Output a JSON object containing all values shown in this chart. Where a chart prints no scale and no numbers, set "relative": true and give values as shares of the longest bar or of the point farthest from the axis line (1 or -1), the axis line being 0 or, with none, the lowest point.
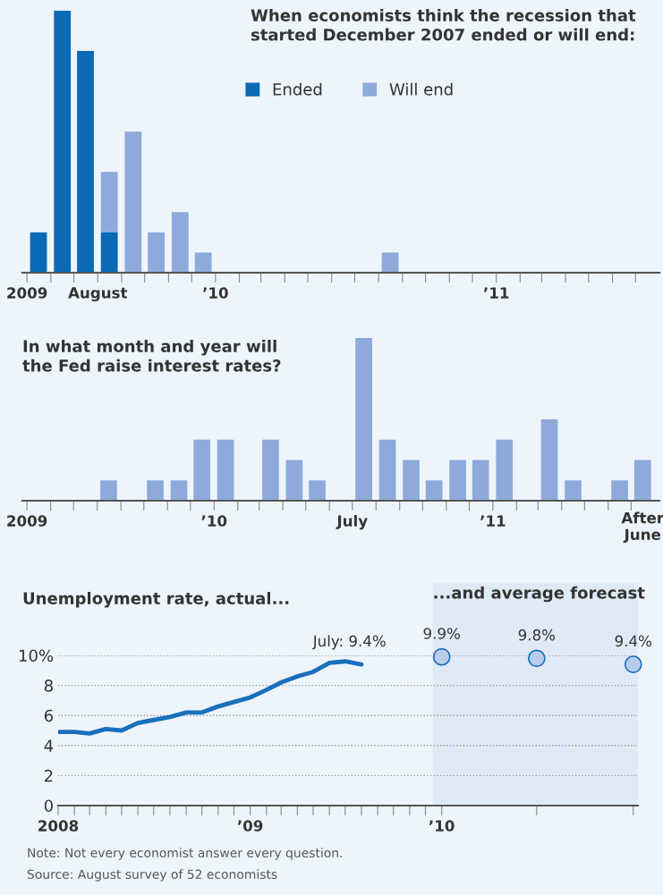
{
  "chart_data": [
    {
      "type": "bar",
      "title": "When economists think the recession that\nstarted December 2007 ended or will end:",
      "stacked": true,
      "relative": true,
      "legend": "top right",
      "x": [
        "2009-05-16",
        "2009-06-16",
        "2009-07-16",
        "2009-08-16",
        "2009-09-16",
        "2009-10-16",
        "2009-11-16",
        "2009-12-16",
        "2010-08-16"
      ],
      "series": [
        {
          "name": "Ended",
          "color": "#0a6ab5",
          "values": [
            0.154,
            1,
            0.846,
            0.154,
            null,
            null,
            null,
            null,
            null
          ]
        },
        {
          "name": "Will end",
          "color": "#8eaadb",
          "values": [
            null,
            null,
            null,
            0.231,
            0.538,
            0.154,
            0.231,
            0.077,
            0.077
          ]
        }
      ],
      "xlim": [
        "2009-04-25",
        "2011-08-01"
      ],
      "xticks": [
        {
          "value": "2009-05",
          "label": "2009"
        },
        {
          "value": "2009-06",
          "label": null
        },
        {
          "value": "2009-07",
          "label": null
        },
        {
          "value": "2009-08",
          "label": "August"
        },
        {
          "value": "2009-09",
          "label": null
        },
        {
          "value": "2009-10",
          "label": null
        },
        {
          "value": "2009-11",
          "label": null
        },
        {
          "value": "2009-12",
          "label": null
        },
        {
          "value": "2010-01",
          "label": "’10"
        },
        {
          "value": "2010-02",
          "label": null
        },
        {
          "value": "2010-03",
          "label": null
        },
        {
          "value": "2010-04",
          "label": null
        },
        {
          "value": "2010-05",
          "label": null
        },
        {
          "value": "2010-06",
          "label": null
        },
        {
          "value": "2010-07",
          "label": null
        },
        {
          "value": "2010-08",
          "label": null
        },
        {
          "value": "2010-09",
          "label": null
        },
        {
          "value": "2010-10",
          "label": null
        },
        {
          "value": "2010-11",
          "label": null
        },
        {
          "value": "2010-12",
          "label": null
        },
        {
          "value": "2011-01",
          "label": "’11"
        },
        {
          "value": "2011-02",
          "label": null
        },
        {
          "value": "2011-03",
          "label": null
        },
        {
          "value": "2011-04",
          "label": null
        },
        {
          "value": "2011-05",
          "label": null
        },
        {
          "value": "2011-06",
          "label": null
        },
        {
          "value": "2011-07",
          "label": null
        }
      ]
    },
    {
      "type": "bar",
      "title": "In what month and year will\nthe Fed raise interest rates?",
      "relative": true,
      "color": "#8eaadb",
      "x": [
        "2009-08-16",
        "2009-10-16",
        "2009-11-16",
        "2009-12-16",
        "2010-01-16",
        "2010-03-16",
        "2010-04-16",
        "2010-05-16",
        "2010-07-16",
        "2010-08-16",
        "2010-09-16",
        "2010-10-16",
        "2010-11-16",
        "2010-12-16",
        "2011-01-16",
        "2011-03-16",
        "2011-04-16",
        "2011-06-16",
        "2011-07-16"
      ],
      "values": [
        0.125,
        0.125,
        0.125,
        0.375,
        0.375,
        0.375,
        0.25,
        0.125,
        1,
        0.375,
        0.25,
        0.125,
        0.25,
        0.25,
        0.375,
        0.5,
        0.125,
        0.125,
        0.25
      ],
      "xlim": [
        "2009-04-25",
        "2011-08-07"
      ],
      "xticks": [
        {
          "value": "2009-05",
          "label": "2009"
        },
        {
          "value": "2009-06",
          "label": null
        },
        {
          "value": "2009-07",
          "label": null
        },
        {
          "value": "2009-08",
          "label": null
        },
        {
          "value": "2009-09",
          "label": null
        },
        {
          "value": "2009-10",
          "label": null
        },
        {
          "value": "2009-11",
          "label": null
        },
        {
          "value": "2009-12",
          "label": null
        },
        {
          "value": "2010-01",
          "label": "’10"
        },
        {
          "value": "2010-02",
          "label": null
        },
        {
          "value": "2010-03",
          "label": null
        },
        {
          "value": "2010-04",
          "label": null
        },
        {
          "value": "2010-05",
          "label": null
        },
        {
          "value": "2010-06",
          "label": null
        },
        {
          "value": "2010-07",
          "label": "July"
        },
        {
          "value": "2010-08",
          "label": null
        },
        {
          "value": "2010-09",
          "label": null
        },
        {
          "value": "2010-10",
          "label": null
        },
        {
          "value": "2010-11",
          "label": null
        },
        {
          "value": "2010-12",
          "label": null
        },
        {
          "value": "2011-01",
          "label": "’11"
        },
        {
          "value": "2011-02",
          "label": null
        },
        {
          "value": "2011-03",
          "label": null
        },
        {
          "value": "2011-04",
          "label": null
        },
        {
          "value": "2011-05",
          "label": null
        },
        {
          "value": "2011-06",
          "label": null
        },
        {
          "value": "2011-07",
          "label": null
        }
      ],
      "annotations": [
        {
          "text": "After\nJune",
          "x": "2011-07-16",
          "y": 0
        }
      ]
    },
    {
      "type": "line",
      "title": "Unemployment rate, actual...",
      "grid": "y",
      "series": [
        {
          "color": "#1a6fbd",
          "x": [
            "2008-01",
            "2008-02",
            "2008-03",
            "2008-04",
            "2008-05",
            "2008-06",
            "2008-07",
            "2008-08",
            "2008-09",
            "2008-10",
            "2008-11",
            "2008-12",
            "2009-01",
            "2009-02",
            "2009-03",
            "2009-04",
            "2009-05",
            "2009-06",
            "2009-07",
            "2009-08"
          ],
          "values": [
            4.9,
            4.9,
            4.8,
            5.1,
            5.0,
            5.5,
            5.7,
            5.9,
            6.2,
            6.2,
            6.6,
            6.9,
            7.2,
            7.7,
            8.2,
            8.6,
            8.9,
            9.5,
            9.6,
            9.4
          ]
        },
        {
          "type": "scatter",
          "color": "#b9cdea",
          "x": [
            "2010-01",
            "2010-07",
            "2011-01"
          ],
          "values": [
            9.9,
            9.8,
            9.4
          ],
          "value_labels": [
            "9.9%",
            "9.8%",
            "9.4%"
          ]
        }
      ],
      "bands": [
        {
          "axis": "x",
          "from": "2009-12-15",
          "to": "2011-01-10",
          "label": "...and average forecast",
          "color": "#dfeaf6"
        }
      ],
      "annotations": [
        {
          "text": "July: 9.4%",
          "x": "2009-08",
          "y": 9.4
        },
        "Note: Not every economist answer every question.",
        "Source: August survey of 52 economists"
      ],
      "xlim": [
        "2008-01-01",
        "2011-01-10"
      ],
      "xticks": [
        {
          "value": "2008-01",
          "label": "2008"
        },
        {
          "value": "2008-02",
          "label": null
        },
        {
          "value": "2008-03",
          "label": null
        },
        {
          "value": "2008-04",
          "label": null
        },
        {
          "value": "2008-05",
          "label": null
        },
        {
          "value": "2008-06",
          "label": null
        },
        {
          "value": "2008-07",
          "label": null
        },
        {
          "value": "2008-08",
          "label": null
        },
        {
          "value": "2008-09",
          "label": null
        },
        {
          "value": "2008-10",
          "label": null
        },
        {
          "value": "2008-11",
          "label": null
        },
        {
          "value": "2008-12",
          "label": null
        },
        {
          "value": "2009-01",
          "label": "’09"
        },
        {
          "value": "2009-02",
          "label": null
        },
        {
          "value": "2009-03",
          "label": null
        },
        {
          "value": "2009-04",
          "label": null
        },
        {
          "value": "2009-05",
          "label": null
        },
        {
          "value": "2009-06",
          "label": null
        },
        {
          "value": "2009-07",
          "label": null
        },
        {
          "value": "2009-08",
          "label": null
        },
        {
          "value": "2009-09",
          "label": null
        },
        {
          "value": "2009-10",
          "label": null
        },
        {
          "value": "2009-11",
          "label": null
        },
        {
          "value": "2009-12",
          "label": null
        },
        {
          "value": "2010-01",
          "label": "’10"
        },
        {
          "value": "2010-07",
          "label": null
        },
        {
          "value": "2011-01",
          "label": null
        }
      ],
      "ylim": [
        0,
        10
      ],
      "yticks": [
        0,
        2,
        4,
        6,
        8,
        {
          "value": 10,
          "label": "10%"
        }
      ]
    }
  ]
}
